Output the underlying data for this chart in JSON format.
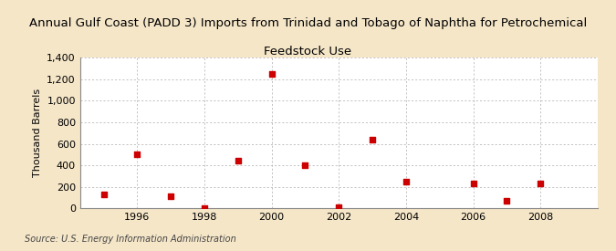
{
  "title_line1": "Annual Gulf Coast (PADD 3) Imports from Trinidad and Tobago of Naphtha for Petrochemical",
  "title_line2": "Feedstock Use",
  "ylabel": "Thousand Barrels",
  "source": "Source: U.S. Energy Information Administration",
  "background_color": "#f5e6c8",
  "plot_background_color": "#ffffff",
  "marker_color": "#cc0000",
  "marker_size": 20,
  "years": [
    1995,
    1996,
    1997,
    1998,
    1999,
    2000,
    2001,
    2002,
    2003,
    2004,
    2006,
    2007,
    2008
  ],
  "values": [
    130,
    500,
    110,
    5,
    440,
    1250,
    400,
    10,
    640,
    250,
    230,
    70,
    230
  ],
  "xlim": [
    1994.3,
    2009.7
  ],
  "ylim": [
    0,
    1400
  ],
  "yticks": [
    0,
    200,
    400,
    600,
    800,
    1000,
    1200,
    1400
  ],
  "xticks": [
    1996,
    1998,
    2000,
    2002,
    2004,
    2006,
    2008
  ],
  "title_fontsize": 9.5,
  "ylabel_fontsize": 8,
  "tick_fontsize": 8,
  "source_fontsize": 7
}
